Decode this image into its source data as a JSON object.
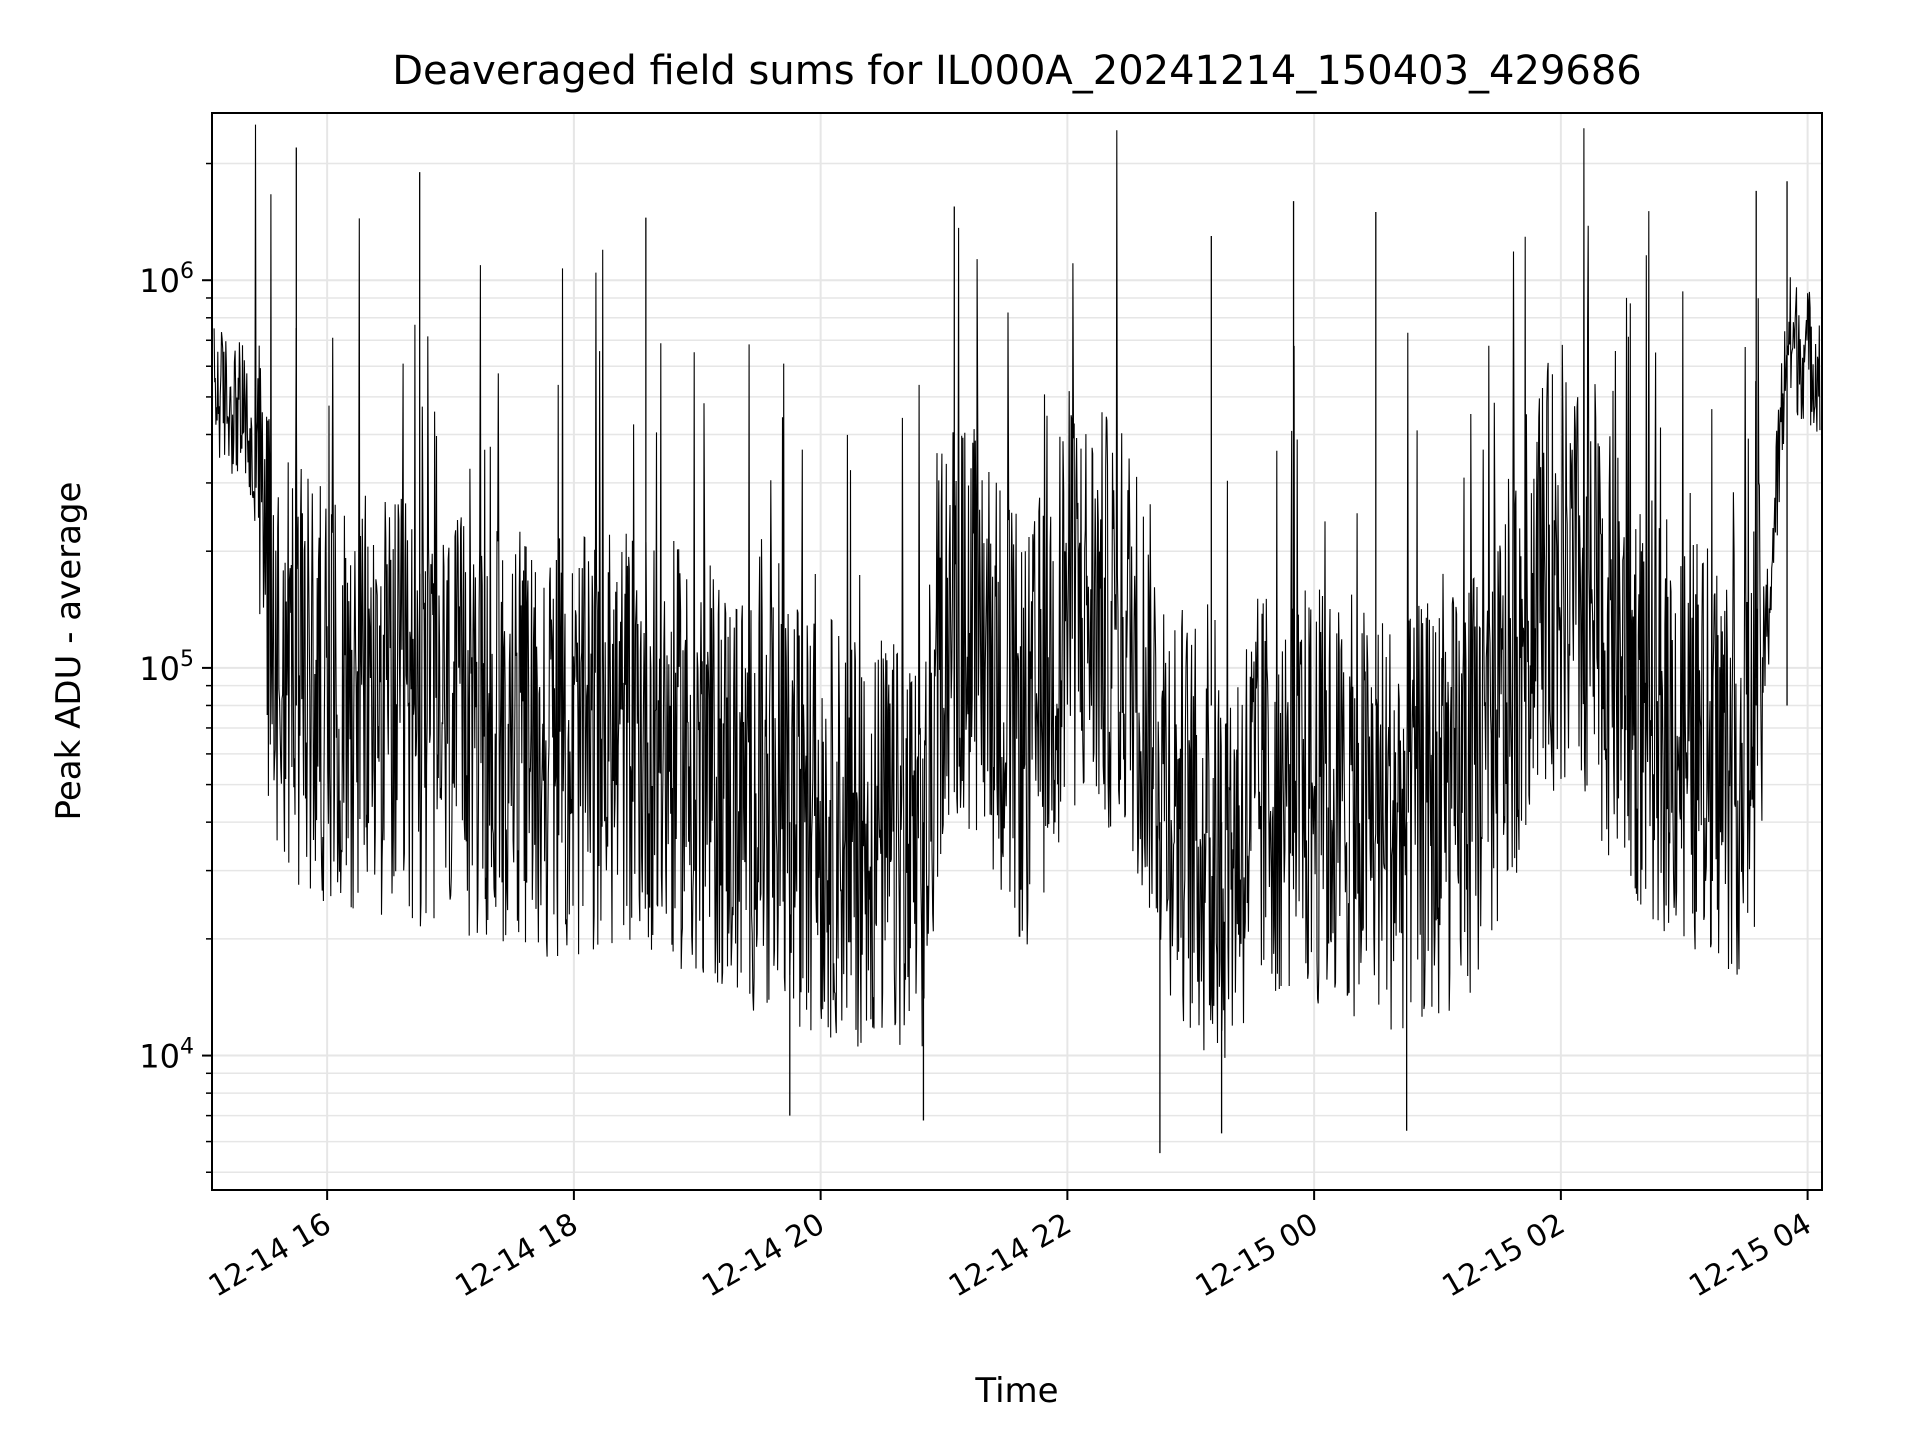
{
  "chart_data": {
    "type": "line",
    "title": "Deaveraged field sums for IL000A_20241214_150403_429686",
    "xlabel": "Time",
    "ylabel": "Peak ADU - average",
    "x_ticks": [
      "12-14 16",
      "12-14 18",
      "12-14 20",
      "12-14 22",
      "12-15 00",
      "12-15 02",
      "12-15 04"
    ],
    "y_ticks": [
      {
        "base": "10",
        "exp": "4",
        "value": 10000
      },
      {
        "base": "10",
        "exp": "5",
        "value": 100000
      },
      {
        "base": "10",
        "exp": "6",
        "value": 1000000
      }
    ],
    "xlim": [
      "2024-12-14 15:04",
      "2024-12-15 04:07"
    ],
    "ylim": [
      4500,
      2700000
    ],
    "y_scale": "log",
    "grid": true,
    "line_color": "#000000",
    "series": [
      {
        "x": [
          "2024-12-14 15:05",
          "2024-12-14 15:20",
          "2024-12-14 15:35",
          "2024-12-14 15:50",
          "2024-12-14 16:10",
          "2024-12-14 16:30",
          "2024-12-14 17:00",
          "2024-12-14 17:30",
          "2024-12-14 18:00",
          "2024-12-14 18:30",
          "2024-12-14 19:00",
          "2024-12-14 19:30",
          "2024-12-14 20:00",
          "2024-12-14 20:30",
          "2024-12-14 20:50",
          "2024-12-14 21:00",
          "2024-12-14 21:20",
          "2024-12-14 21:40",
          "2024-12-14 22:00",
          "2024-12-14 22:30",
          "2024-12-14 22:50",
          "2024-12-14 23:10",
          "2024-12-14 23:40",
          "2024-12-15 00:10",
          "2024-12-15 00:40",
          "2024-12-15 01:10",
          "2024-12-15 01:30",
          "2024-12-15 01:50",
          "2024-12-15 02:10",
          "2024-12-15 02:40",
          "2024-12-15 03:10",
          "2024-12-15 03:30",
          "2024-12-15 03:40",
          "2024-12-15 03:50",
          "2024-12-15 04:07"
        ],
        "values": [
          520000,
          450000,
          120000,
          90000,
          85000,
          80000,
          70000,
          65000,
          60000,
          70000,
          55000,
          45000,
          40000,
          35000,
          30000,
          140000,
          120000,
          60000,
          150000,
          120000,
          50000,
          30000,
          50000,
          45000,
          40000,
          45000,
          70000,
          180000,
          150000,
          80000,
          60000,
          55000,
          120000,
          700000,
          600000
        ],
        "peaks_high": [
          "2024-12-14 15:45",
          "2024-12-14 16:45",
          "2024-12-14 18:35",
          "2024-12-14 21:05",
          "2024-12-14 23:10",
          "2024-12-14 23:50",
          "2024-12-15 00:30",
          "2024-12-15 03:35",
          "2024-12-15 03:50"
        ],
        "peaks_high_values": [
          2200000,
          1900000,
          1450000,
          1550000,
          1300000,
          1600000,
          1500000,
          1700000,
          1800000
        ],
        "peaks_low": [
          "2024-12-14 19:45",
          "2024-12-14 20:50",
          "2024-12-14 22:45",
          "2024-12-14 23:15",
          "2024-12-15 00:45"
        ],
        "peaks_low_values": [
          7000,
          6800,
          5600,
          6300,
          6400
        ]
      }
    ]
  }
}
